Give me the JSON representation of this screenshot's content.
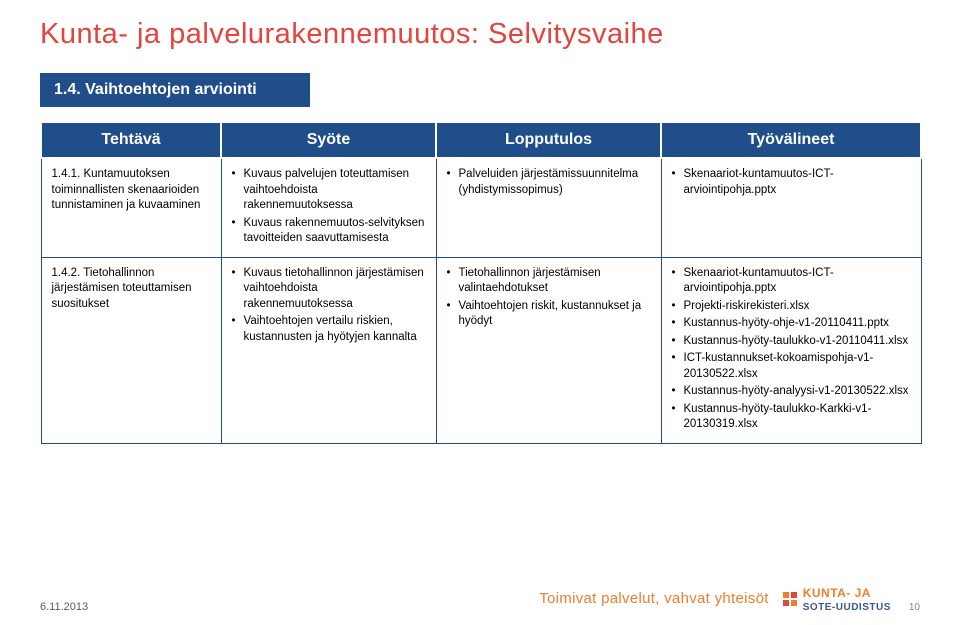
{
  "title": "Kunta- ja palvelurakennemuutos: Selvitysvaihe",
  "subtitle": "1.4. Vaihtoehtojen arviointi",
  "columns": [
    "Tehtävä",
    "Syöte",
    "Lopputulos",
    "Työvälineet"
  ],
  "rows": [
    {
      "label": "1.4.1. Kuntamuutoksen toiminnallisten skenaarioiden tunnistaminen ja kuvaaminen",
      "syote": [
        "Kuvaus palvelujen toteuttamisen vaihtoehdoista rakennemuutoksessa",
        "Kuvaus rakennemuutos-selvityksen tavoitteiden saavuttamisesta"
      ],
      "lopputulos": [
        "Palveluiden järjestämissuunnitelma (yhdistymissopimus)"
      ],
      "tyovalineet": [
        "Skenaariot-kuntamuutos-ICT-arviointipohja.pptx"
      ]
    },
    {
      "label": "1.4.2. Tietohallinnon järjestämisen toteuttamisen suositukset",
      "syote": [
        "Kuvaus tietohallinnon järjestämisen vaihtoehdoista rakennemuutoksessa",
        "Vaihtoehtojen vertailu riskien, kustannusten ja hyötyjen kannalta"
      ],
      "lopputulos": [
        "Tietohallinnon järjestämisen valintaehdotukset",
        "Vaihtoehtojen riskit, kustannukset ja hyödyt"
      ],
      "tyovalineet": [
        "Skenaariot-kuntamuutos-ICT-arviointipohja.pptx",
        "Projekti-riskirekisteri.xlsx",
        "Kustannus-hyöty-ohje-v1-20110411.pptx",
        "Kustannus-hyöty-taulukko-v1-20110411.xlsx",
        "ICT-kustannukset-kokoamispohja-v1-20130522.xlsx",
        "Kustannus-hyöty-analyysi-v1-20130522.xlsx",
        "Kustannus-hyöty-taulukko-Karkki-v1-20130319.xlsx"
      ]
    }
  ],
  "footer": {
    "date": "6.11.2013",
    "brand_text": "Toimivat palvelut, vahvat yhteisöt",
    "logo_text1": "KUNTA- JA",
    "logo_text2": "SOTE-UUDISTUS",
    "page_number": "10"
  },
  "colors": {
    "title": "#e6433d",
    "header_bg": "#1f4e8a",
    "header_fg": "#ffffff",
    "border": "#1f4e8a",
    "brand": "#f07e2a"
  }
}
